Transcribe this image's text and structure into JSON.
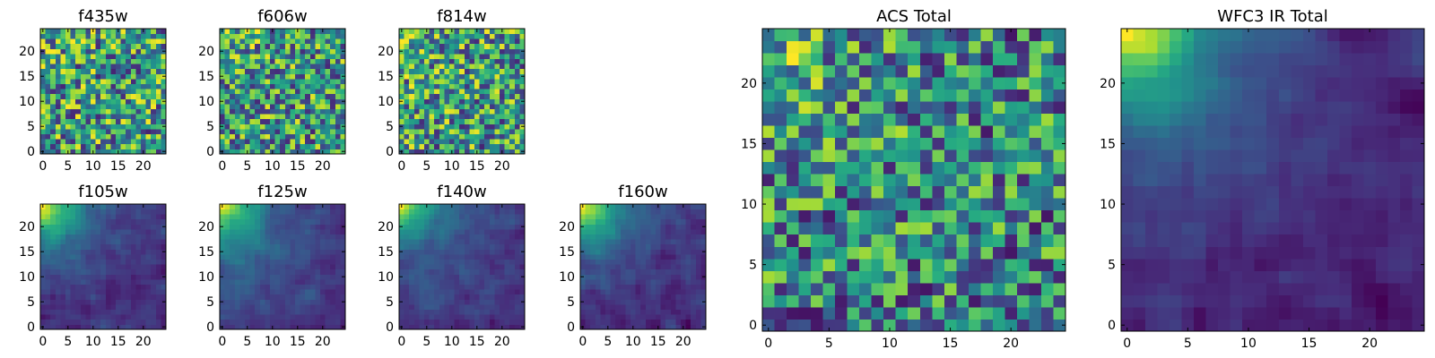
{
  "figure": {
    "colormap": "viridis",
    "background": "#ffffff",
    "frame_color": "#000000"
  },
  "chart_data": [
    {
      "type": "heatmap",
      "title": "f435w",
      "grid": 25,
      "xticks": [
        "0",
        "5",
        "10",
        "15",
        "20"
      ],
      "yticks": [
        "0",
        "5",
        "10",
        "15",
        "20"
      ],
      "pattern": "noise",
      "gradient": 0.05,
      "noise": 1.0,
      "seed": 11,
      "range": [
        0.1,
        1.0
      ]
    },
    {
      "type": "heatmap",
      "title": "f606w",
      "grid": 25,
      "xticks": [
        "0",
        "5",
        "10",
        "15",
        "20"
      ],
      "yticks": [
        "0",
        "5",
        "10",
        "15",
        "20"
      ],
      "pattern": "noise",
      "gradient": 0.2,
      "noise": 0.9,
      "seed": 23,
      "range": [
        0.1,
        1.0
      ]
    },
    {
      "type": "heatmap",
      "title": "f814w",
      "grid": 25,
      "xticks": [
        "0",
        "5",
        "10",
        "15",
        "20"
      ],
      "yticks": [
        "0",
        "5",
        "10",
        "15",
        "20"
      ],
      "pattern": "noise",
      "gradient": 0.25,
      "noise": 0.85,
      "seed": 37,
      "range": [
        0.1,
        1.0
      ]
    },
    {
      "type": "heatmap",
      "title": "f105w",
      "grid": 25,
      "xticks": [
        "0",
        "5",
        "10",
        "15",
        "20"
      ],
      "yticks": [
        "0",
        "5",
        "10",
        "15",
        "20"
      ],
      "pattern": "corner",
      "gradient": 1.0,
      "noise": 0.35,
      "seed": 41,
      "range": [
        0.05,
        1.0
      ]
    },
    {
      "type": "heatmap",
      "title": "f125w",
      "grid": 25,
      "xticks": [
        "0",
        "5",
        "10",
        "15",
        "20"
      ],
      "yticks": [
        "0",
        "5",
        "10",
        "15",
        "20"
      ],
      "pattern": "corner",
      "gradient": 1.0,
      "noise": 0.35,
      "seed": 53,
      "range": [
        0.05,
        1.0
      ]
    },
    {
      "type": "heatmap",
      "title": "f140w",
      "grid": 25,
      "xticks": [
        "0",
        "5",
        "10",
        "15",
        "20"
      ],
      "yticks": [
        "0",
        "5",
        "10",
        "15",
        "20"
      ],
      "pattern": "corner",
      "gradient": 1.0,
      "noise": 0.4,
      "seed": 67,
      "range": [
        0.05,
        1.0
      ]
    },
    {
      "type": "heatmap",
      "title": "f160w",
      "grid": 25,
      "xticks": [
        "0",
        "5",
        "10",
        "15",
        "20"
      ],
      "yticks": [
        "0",
        "5",
        "10",
        "15",
        "20"
      ],
      "pattern": "corner",
      "gradient": 1.0,
      "noise": 0.35,
      "seed": 79,
      "range": [
        0.0,
        1.0
      ]
    },
    {
      "type": "heatmap",
      "title": "ACS Total",
      "grid": 25,
      "xticks": [
        "0",
        "5",
        "10",
        "15",
        "20"
      ],
      "yticks": [
        "0",
        "5",
        "10",
        "15",
        "20"
      ],
      "pattern": "noise",
      "gradient": 0.35,
      "noise": 0.75,
      "seed": 97,
      "range": [
        0.05,
        1.0
      ]
    },
    {
      "type": "heatmap",
      "title": "WFC3 IR Total",
      "grid": 25,
      "xticks": [
        "0",
        "5",
        "10",
        "15",
        "20"
      ],
      "yticks": [
        "0",
        "5",
        "10",
        "15",
        "20"
      ],
      "pattern": "corner",
      "gradient": 1.0,
      "noise": 0.3,
      "seed": 113,
      "range": [
        0.0,
        1.0
      ]
    }
  ]
}
